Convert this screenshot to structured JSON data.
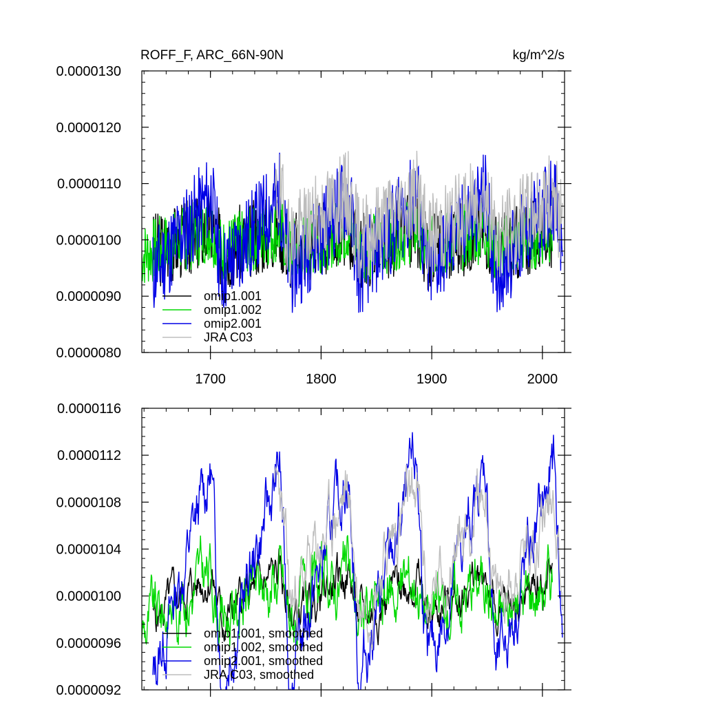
{
  "chart_data": [
    {
      "type": "line",
      "title": "ROFF_F, ARC_66N-90N",
      "units": "kg/m^2/s",
      "xlim": [
        1638,
        2020
      ],
      "ylim": [
        8e-06,
        1.3e-05
      ],
      "xticks": [
        1700,
        1800,
        1900,
        2000
      ],
      "yticks": [
        8e-06,
        9e-06,
        1e-05,
        1.1e-05,
        1.2e-05,
        1.3e-05
      ],
      "ytick_labels": [
        "0.0000080",
        "0.0000090",
        "0.0000100",
        "0.0000110",
        "0.0000120",
        "0.0000130"
      ],
      "xtick_labels": [
        "1700",
        "1800",
        "1900",
        "2000"
      ],
      "legend_position": "bottom-left",
      "series": [
        {
          "name": "omip1.001",
          "color": "#000000",
          "x_start": 1648,
          "x_end": 2009,
          "period": 62,
          "amp": 2e-07,
          "noise": 7e-07,
          "base": 1e-05,
          "seed": 3
        },
        {
          "name": "omip1.002",
          "color": "#00d900",
          "x_start": 1638,
          "x_end": 2009,
          "period": 62,
          "amp": 2e-07,
          "noise": 6e-07,
          "base": 1e-05,
          "seed": 7
        },
        {
          "name": "omip2.001",
          "color": "#0000e6",
          "x_start": 1648,
          "x_end": 2018,
          "period": 62,
          "amp": 7e-07,
          "noise": 8e-07,
          "base": 1.01e-05,
          "seed": 11
        },
        {
          "name": "JRA C03",
          "color": "#bdbdbd",
          "x_start": 1758,
          "x_end": 2018,
          "period": 62,
          "amp": 4e-07,
          "noise": 8e-07,
          "base": 1.04e-05,
          "seed": 19
        }
      ]
    },
    {
      "type": "line",
      "title": "",
      "xlim": [
        1638,
        2020
      ],
      "ylim": [
        9.2e-06,
        1.16e-05
      ],
      "xticks": [
        1700,
        1800,
        1900,
        2000
      ],
      "yticks": [
        9.2e-06,
        9.6e-06,
        1e-05,
        1.04e-05,
        1.08e-05,
        1.12e-05,
        1.16e-05
      ],
      "ytick_labels": [
        "0.0000092",
        "0.0000096",
        "0.0000100",
        "0.0000104",
        "0.0000108",
        "0.0000112",
        "0.0000116"
      ],
      "legend_position": "bottom-left",
      "series": [
        {
          "name": "omip1.001, smoothed",
          "color": "#000000",
          "x_start": 1648,
          "x_end": 2009,
          "period": 62,
          "amp": 2e-07,
          "noise": 2e-07,
          "base": 1e-05,
          "seed": 5
        },
        {
          "name": "omip1.002, smoothed",
          "color": "#00d900",
          "x_start": 1638,
          "x_end": 2009,
          "period": 62,
          "amp": 2e-07,
          "noise": 3e-07,
          "base": 1e-05,
          "seed": 9
        },
        {
          "name": "omip2.001, smoothed",
          "color": "#0000e6",
          "x_start": 1648,
          "x_end": 2018,
          "period": 62,
          "amp": 9e-07,
          "noise": 3e-07,
          "base": 1.02e-05,
          "seed": 13
        },
        {
          "name": "JRA C03, smoothed",
          "color": "#bdbdbd",
          "x_start": 1758,
          "x_end": 2018,
          "period": 62,
          "amp": 5e-07,
          "noise": 3e-07,
          "base": 1.04e-05,
          "seed": 23
        }
      ]
    }
  ]
}
